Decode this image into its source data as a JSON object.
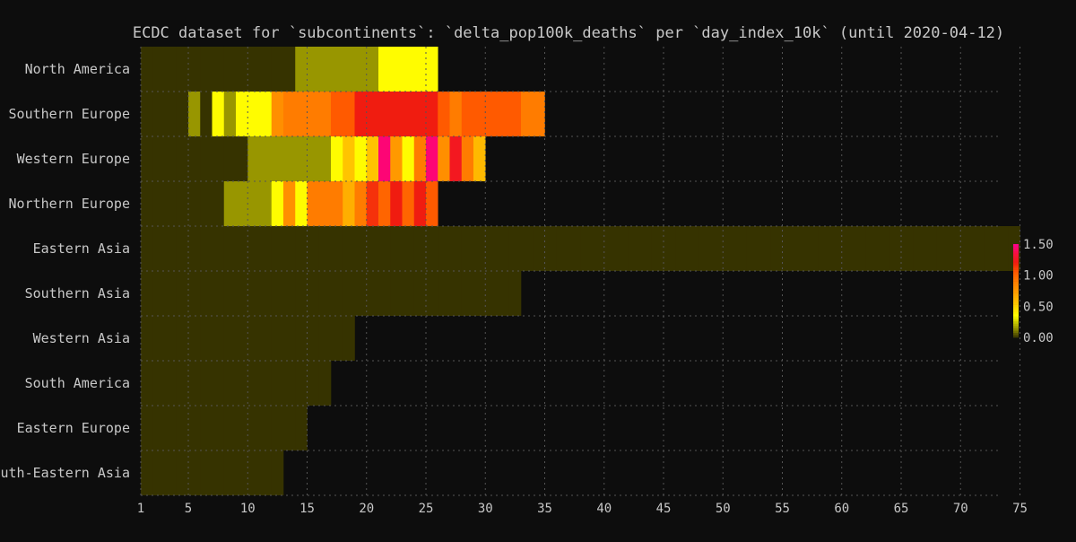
{
  "chart_data": {
    "type": "heatmap",
    "title": "ECDC dataset for `subcontinents`: `delta_pop100k_deaths` per `day_index_10k` (until 2020-04-12)",
    "xlabel": "",
    "ylabel": "",
    "xlim": [
      0,
      75
    ],
    "x_ticks": [
      1,
      5,
      10,
      15,
      20,
      25,
      30,
      35,
      40,
      45,
      50,
      55,
      60,
      65,
      70,
      75
    ],
    "grid": true,
    "colorbar": {
      "range": [
        0,
        1.5
      ],
      "ticks": [
        "0.00",
        "0.50",
        "1.00",
        "1.50"
      ],
      "stops": [
        {
          "v": 0.0,
          "color": "#363300"
        },
        {
          "v": 0.15,
          "color": "#989600"
        },
        {
          "v": 0.35,
          "color": "#ffff00"
        },
        {
          "v": 0.55,
          "color": "#ffc400"
        },
        {
          "v": 0.75,
          "color": "#ff9900"
        },
        {
          "v": 0.9,
          "color": "#ff7c00"
        },
        {
          "v": 1.05,
          "color": "#ff5a00"
        },
        {
          "v": 1.2,
          "color": "#f01c10"
        },
        {
          "v": 1.35,
          "color": "#f81040"
        },
        {
          "v": 1.5,
          "color": "#ff0090"
        }
      ]
    },
    "rows": [
      {
        "name": "North America",
        "values": [
          0,
          0,
          0,
          0,
          0,
          0,
          0,
          0,
          0,
          0,
          0,
          0,
          0,
          0.15,
          0.15,
          0.15,
          0.15,
          0.15,
          0.15,
          0.15,
          0.36,
          0.36,
          0.36,
          0.36,
          0.36
        ]
      },
      {
        "name": "Southern Europe",
        "values": [
          0,
          0,
          0,
          0,
          0.15,
          0,
          0.36,
          0.15,
          0.36,
          0.36,
          0.36,
          0.8,
          0.9,
          0.9,
          0.9,
          0.9,
          1.05,
          1.05,
          1.2,
          1.2,
          1.2,
          1.2,
          1.2,
          1.2,
          1.2,
          1.05,
          0.9,
          1.05,
          1.05,
          1.05,
          1.05,
          1.05,
          0.9,
          0.9
        ]
      },
      {
        "name": "Western Europe",
        "values": [
          0,
          0,
          0,
          0,
          0,
          0,
          0,
          0,
          0,
          0.15,
          0.15,
          0.15,
          0.15,
          0.15,
          0.15,
          0.15,
          0.36,
          0.55,
          0.36,
          0.55,
          1.45,
          0.75,
          0.36,
          0.9,
          1.45,
          0.8,
          1.25,
          0.9,
          0.6
        ]
      },
      {
        "name": "Northern Europe",
        "values": [
          0,
          0,
          0,
          0,
          0,
          0,
          0,
          0.15,
          0.15,
          0.15,
          0.15,
          0.36,
          0.8,
          0.36,
          0.9,
          0.9,
          0.9,
          0.65,
          0.9,
          1.15,
          1.0,
          1.2,
          1.0,
          1.2,
          1.05
        ]
      },
      {
        "name": "Eastern Asia",
        "values": [
          0,
          0,
          0,
          0,
          0,
          0,
          0,
          0,
          0,
          0,
          0,
          0,
          0,
          0,
          0,
          0,
          0,
          0,
          0,
          0,
          0,
          0,
          0,
          0,
          0,
          0,
          0,
          0,
          0,
          0,
          0,
          0,
          0,
          0,
          0,
          0,
          0,
          0,
          0,
          0,
          0,
          0,
          0,
          0,
          0,
          0,
          0,
          0,
          0,
          0,
          0,
          0,
          0,
          0,
          0,
          0,
          0,
          0,
          0,
          0,
          0,
          0,
          0,
          0,
          0,
          0,
          0,
          0,
          0,
          0,
          0,
          0,
          0,
          0
        ]
      },
      {
        "name": "Southern Asia",
        "values": [
          0,
          0,
          0,
          0,
          0,
          0,
          0,
          0,
          0,
          0,
          0,
          0,
          0,
          0,
          0,
          0,
          0,
          0,
          0,
          0,
          0,
          0,
          0,
          0,
          0,
          0,
          0,
          0,
          0,
          0,
          0,
          0
        ]
      },
      {
        "name": "Western Asia",
        "values": [
          0,
          0,
          0,
          0,
          0,
          0,
          0,
          0,
          0,
          0,
          0,
          0,
          0,
          0,
          0,
          0,
          0,
          0
        ]
      },
      {
        "name": "South America",
        "values": [
          0,
          0,
          0,
          0,
          0,
          0,
          0,
          0,
          0,
          0,
          0,
          0,
          0,
          0,
          0,
          0
        ]
      },
      {
        "name": "Eastern Europe",
        "values": [
          0,
          0,
          0,
          0,
          0,
          0,
          0,
          0,
          0,
          0,
          0,
          0,
          0,
          0
        ]
      },
      {
        "name": "South-Eastern Asia",
        "values": [
          0,
          0,
          0,
          0,
          0,
          0,
          0,
          0,
          0,
          0,
          0,
          0
        ]
      }
    ]
  }
}
